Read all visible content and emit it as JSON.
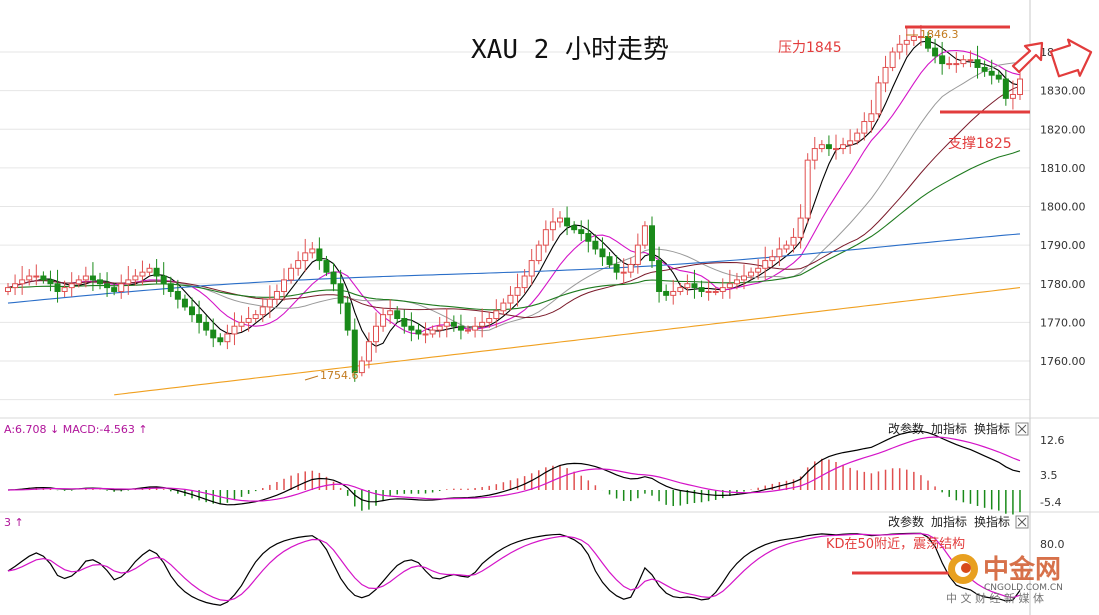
{
  "header": {
    "title": "XAU 2 小时走势"
  },
  "annotations": {
    "resistance": "压力1845",
    "support": "支撑1825",
    "high_label": "1846.3",
    "low_label": "1754.6",
    "kd_note": "KD在50附近，震荡结构"
  },
  "macd_panel": {
    "header": "A:6.708 ↓ MACD:-4.563 ↑",
    "buttons": [
      "改参数",
      "加指标",
      "换指标"
    ],
    "ticks": [
      "12.6",
      "3.5",
      "-5.4"
    ]
  },
  "kd_panel": {
    "header": "3 ↑",
    "buttons": [
      "改参数",
      "加指标",
      "换指标"
    ],
    "ticks": [
      "80.0"
    ]
  },
  "price_axis": {
    "ticks": [
      "1760.00",
      "1770.00",
      "1780.00",
      "1790.00",
      "1800.00",
      "1810.00",
      "1820.00",
      "1830.00",
      "1840.00"
    ]
  },
  "watermark": {
    "logo_text": "中金网",
    "url": "CNGOLD.COM.CN",
    "slogan": "中 文 财 经 新 媒 体"
  },
  "colors": {
    "up": "#e05050",
    "down": "#1a8a1a",
    "annotation_red": "#e23c3c",
    "ma5": "#000000",
    "ma10": "#d414c8",
    "ma20": "#9a9a9a",
    "ma30": "#7a1a2a",
    "ma60": "#1e7a1e",
    "ma120": "#2a6ec8",
    "ma250": "#f0a020"
  },
  "chart_data": [
    {
      "type": "candlestick",
      "title": "XAU 2 小时走势",
      "ylim": [
        1750,
        1848
      ],
      "y_ticks": [
        1760,
        1770,
        1780,
        1790,
        1800,
        1810,
        1820,
        1830,
        1840
      ],
      "grid": true,
      "annotations": [
        {
          "text": "压力1845",
          "y": 1845
        },
        {
          "text": "支撑1825",
          "y": 1826
        },
        {
          "text": "1846.3",
          "y": 1846.3
        },
        {
          "text": "1754.6",
          "y": 1754.6
        }
      ],
      "close": [
        1779,
        1780,
        1781,
        1782,
        1782,
        1781,
        1780,
        1778,
        1779,
        1780,
        1781,
        1782,
        1781,
        1780,
        1779,
        1778,
        1780,
        1781,
        1782,
        1783,
        1784,
        1782,
        1780,
        1778,
        1776,
        1774,
        1772,
        1770,
        1768,
        1766,
        1765,
        1767,
        1769,
        1770,
        1771,
        1772,
        1774,
        1776,
        1778,
        1781,
        1784,
        1786,
        1788,
        1789,
        1786,
        1783,
        1780,
        1775,
        1768,
        1757,
        1760,
        1765,
        1769,
        1772,
        1773,
        1771,
        1769,
        1768,
        1767,
        1767,
        1768,
        1769,
        1770,
        1769,
        1768,
        1768,
        1769,
        1770,
        1771,
        1773,
        1775,
        1777,
        1779,
        1782,
        1786,
        1790,
        1794,
        1796,
        1797,
        1795,
        1794,
        1793,
        1791,
        1789,
        1787,
        1785,
        1783,
        1783,
        1785,
        1790,
        1795,
        1786,
        1778,
        1777,
        1778,
        1779,
        1780,
        1779,
        1778,
        1778,
        1778,
        1779,
        1780,
        1781,
        1782,
        1783,
        1784,
        1786,
        1787,
        1789,
        1790,
        1792,
        1797,
        1812,
        1815,
        1816,
        1815,
        1815,
        1816,
        1817,
        1819,
        1822,
        1824,
        1832,
        1836,
        1840,
        1842,
        1843,
        1844,
        1844,
        1841,
        1839,
        1837,
        1837,
        1837,
        1838,
        1838,
        1836,
        1835,
        1834,
        1833,
        1828,
        1829,
        1833
      ]
    },
    {
      "type": "line",
      "title": "MACD",
      "series": [
        {
          "name": "A",
          "value_latest": 6.708
        },
        {
          "name": "MACD",
          "value_latest": -4.563
        }
      ],
      "y_ticks": [
        12.6,
        3.5,
        -5.4
      ]
    },
    {
      "type": "line",
      "title": "KD",
      "y_ticks": [
        80.0
      ]
    }
  ]
}
